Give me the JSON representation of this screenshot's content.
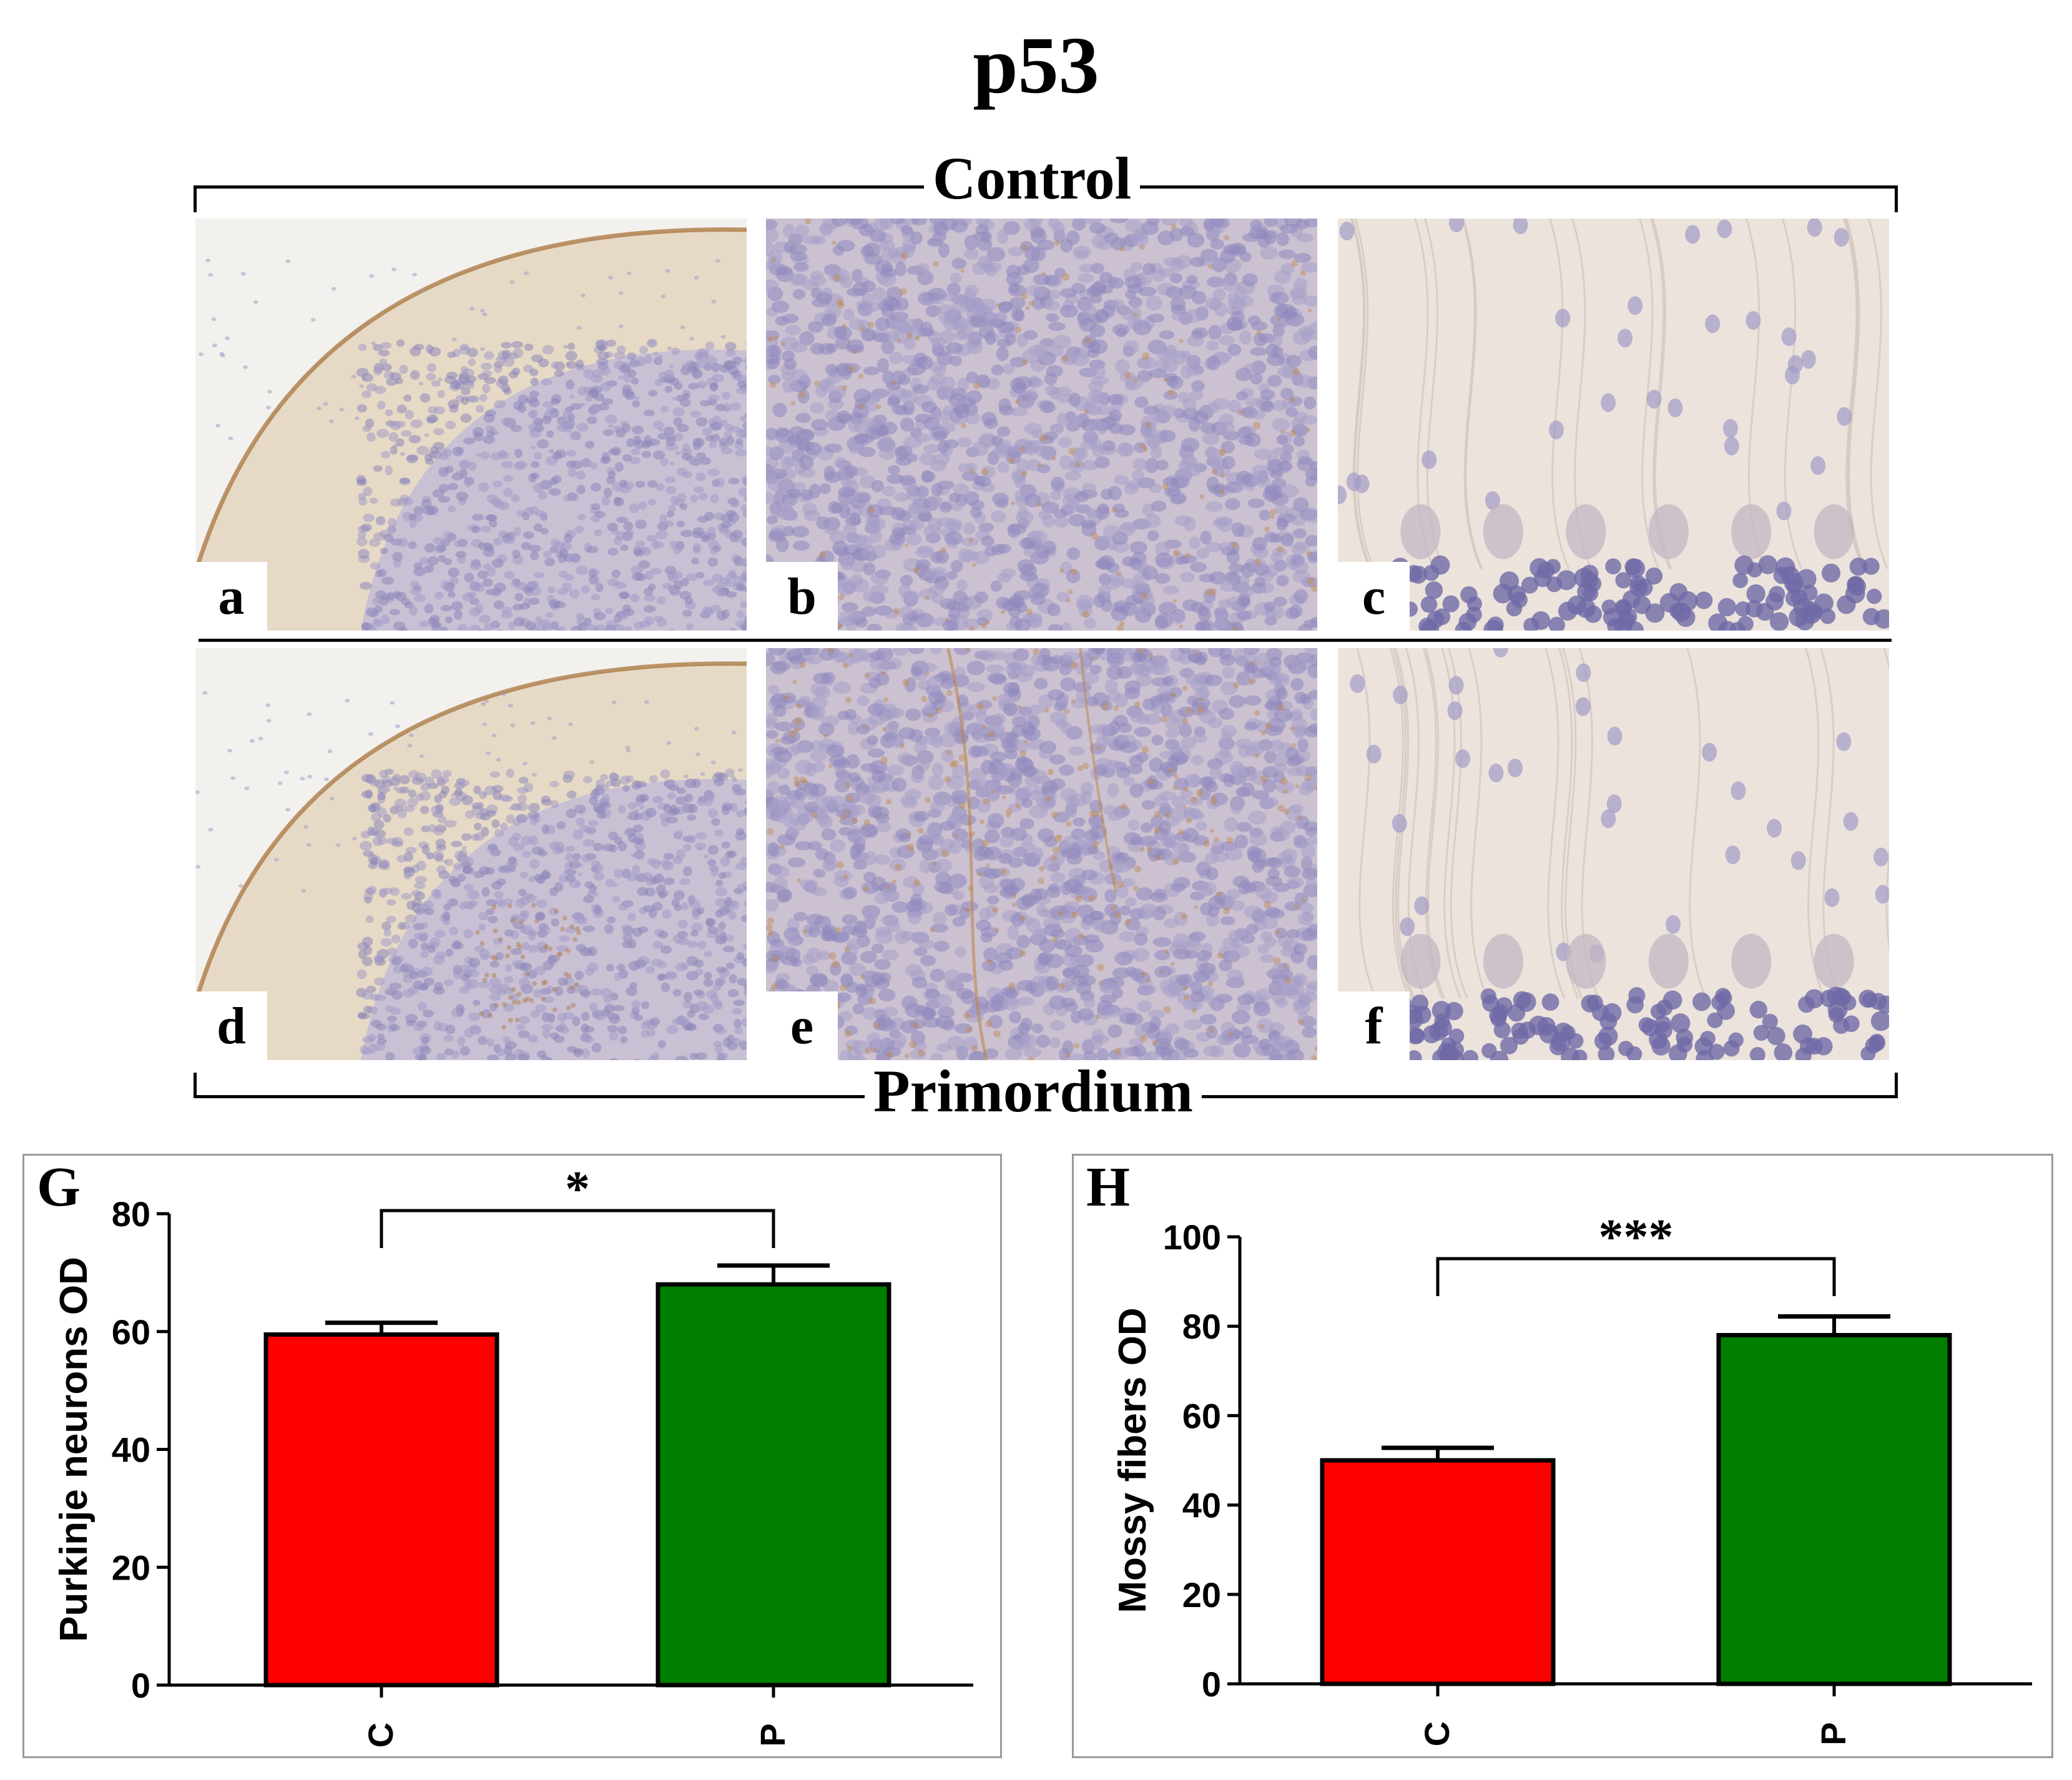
{
  "figure": {
    "title": "p53",
    "top_group": "Control",
    "bottom_group": "Primordium",
    "panels": [
      {
        "label": "a",
        "kind": "cortex"
      },
      {
        "label": "b",
        "kind": "granular"
      },
      {
        "label": "c",
        "kind": "purkinje"
      },
      {
        "label": "d",
        "kind": "cortex"
      },
      {
        "label": "e",
        "kind": "granular"
      },
      {
        "label": "f",
        "kind": "purkinje"
      }
    ]
  },
  "chart_data": [
    {
      "panel_label": "G",
      "type": "bar",
      "categories": [
        "C",
        "P"
      ],
      "values": [
        59.5,
        68
      ],
      "errors": [
        2,
        3.2
      ],
      "colors": [
        "#ff0000",
        "#007f00"
      ],
      "ylabel": "Purkinje neurons OD",
      "ylim": [
        0,
        80
      ],
      "yticks": [
        0,
        20,
        40,
        60,
        80
      ],
      "significance": "*"
    },
    {
      "panel_label": "H",
      "type": "bar",
      "categories": [
        "C",
        "P"
      ],
      "values": [
        50,
        78
      ],
      "errors": [
        2.8,
        4.2
      ],
      "colors": [
        "#ff0000",
        "#007f00"
      ],
      "ylabel": "Mossy fibers OD",
      "ylim": [
        0,
        100
      ],
      "yticks": [
        0,
        20,
        40,
        60,
        80,
        100
      ],
      "significance": "***"
    }
  ]
}
